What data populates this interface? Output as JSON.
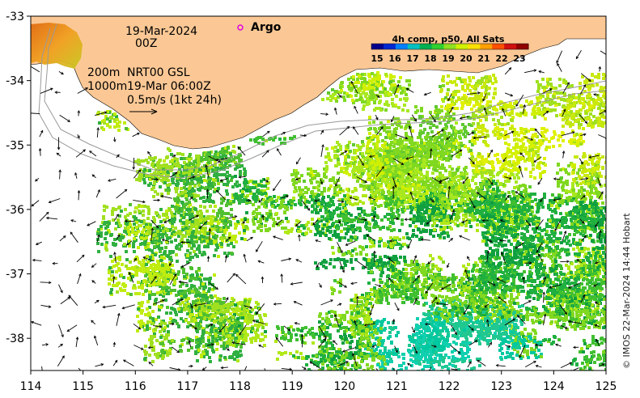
{
  "map": {
    "date": "19-Mar-2024",
    "time": "00Z",
    "isobath_200": "200m",
    "isobath_1000": "1000m",
    "product": "NRT00 GSL",
    "product_time": "19-Mar 06:00Z",
    "vector_scale": "0.5m/s (1kt 24h)",
    "argo_label": "Argo",
    "credit": "© IMOS 22-Mar-2024 14:44 Hobart",
    "colorbar": {
      "title": "4h comp, p50, All Sats",
      "ticks": [
        "15",
        "16",
        "17",
        "18",
        "19",
        "20",
        "21",
        "22",
        "23"
      ],
      "colors": [
        "#00008b",
        "#0028d0",
        "#0080ff",
        "#00c0c0",
        "#00b050",
        "#30d030",
        "#90e020",
        "#d0f000",
        "#ffe000",
        "#ffa000",
        "#ff5000",
        "#d01010",
        "#900000"
      ]
    },
    "x_ticks": [
      "114",
      "115",
      "116",
      "117",
      "118",
      "119",
      "120",
      "121",
      "122",
      "123",
      "124",
      "125"
    ],
    "y_ticks": [
      "-33",
      "-34",
      "-35",
      "-36",
      "-37",
      "-38"
    ],
    "land_color": "#fbc895",
    "x_range": [
      114,
      125
    ],
    "y_range": [
      -38.5,
      -33
    ]
  }
}
